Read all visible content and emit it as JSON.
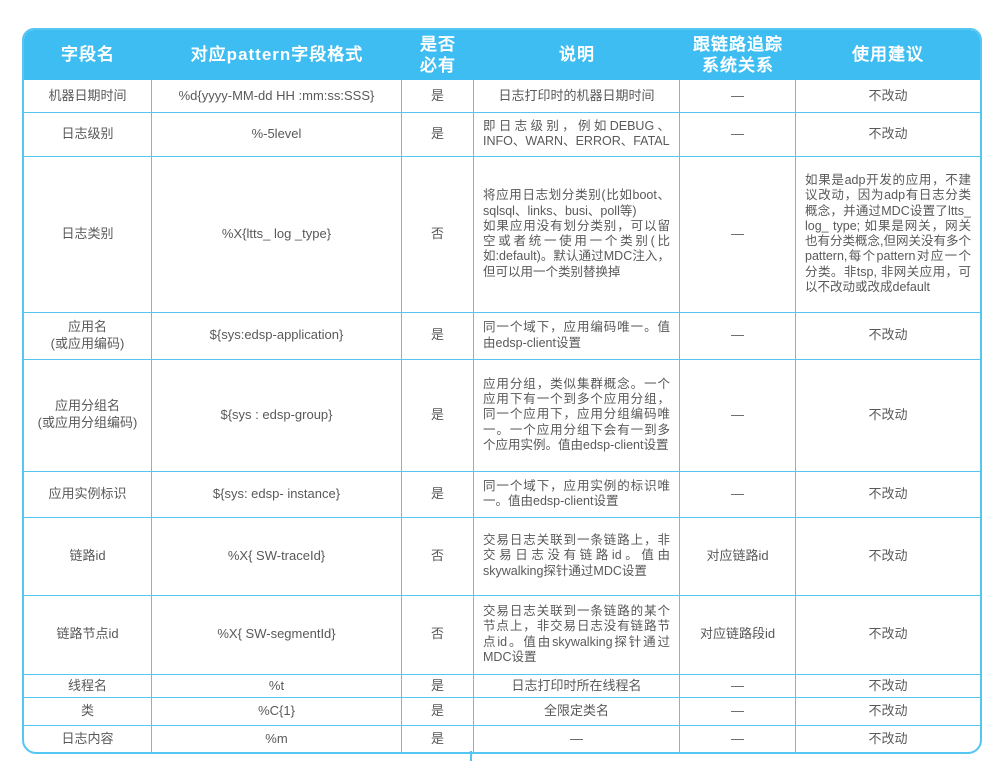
{
  "colors": {
    "header_bg": "#3DBDF2",
    "header_text": "#FFFFFF",
    "border": "#55C5F2",
    "body_text": "#595959",
    "page_bg": "#FFFFFF"
  },
  "table": {
    "columns": [
      {
        "label": "字段名"
      },
      {
        "label": "对应pattern字段格式"
      },
      {
        "label": "是否\n必有"
      },
      {
        "label": "说明"
      },
      {
        "label": "跟链路追踪\n系统关系"
      },
      {
        "label": "使用建议"
      }
    ],
    "rows": [
      {
        "cells": [
          "机器日期时间",
          "%d{yyyy-MM-dd HH :mm:ss:SSS}",
          "是",
          "日志打印时的机器日期时间",
          "—",
          "不改动"
        ]
      },
      {
        "cells": [
          "日志级别",
          "%-5level",
          "是",
          "即日志级别，例如DEBUG、INFO、WARN、ERROR、FATAL",
          "—",
          "不改动"
        ]
      },
      {
        "cells": [
          "日志类别",
          "%X{ltts_ log _type}",
          "否",
          "将应用日志划分类别(比如boot、sqlsql、links、busi、poll等)\n如果应用没有划分类别，可以留空或者统一使用一个类别(比如:default)。默认通过MDC注入，但可以用一个类别替换掉",
          "—",
          "如果是adp开发的应用，不建议改动，因为adp有日志分类概念，并通过MDC设置了ltts_ log_ type; 如果是网关，网关也有分类概念,但网关没有多个pattern,每个pattern对应一个分类。非tsp, 非网关应用，可以不改动或改成default"
        ]
      },
      {
        "cells": [
          "应用名\n(或应用编码)",
          "${sys:edsp-application}",
          "是",
          "同一个域下，应用编码唯一。值由edsp-client设置",
          "—",
          "不改动"
        ]
      },
      {
        "cells": [
          "应用分组名\n(或应用分组编码)",
          "${sys : edsp-group}",
          "是",
          "应用分组，类似集群概念。一个应用下有一个到多个应用分组，同一个应用下，应用分组编码唯一。一个应用分组下会有一到多个应用实例。值由edsp-client设置",
          "—",
          "不改动"
        ]
      },
      {
        "cells": [
          "应用实例标识",
          "${sys: edsp- instance}",
          "是",
          "同一个域下，应用实例的标识唯一。值由edsp-client设置",
          "—",
          "不改动"
        ]
      },
      {
        "cells": [
          "链路id",
          "%X{ SW-traceId}",
          "否",
          "交易日志关联到一条链路上，非交易日志没有链路id。值由skywalking探针通过MDC设置",
          "对应链路id",
          "不改动"
        ]
      },
      {
        "cells": [
          "链路节点id",
          "%X{ SW-segmentId}",
          "否",
          "交易日志关联到一条链路的某个节点上，非交易日志没有链路节点id。值由skywalking探针通过MDC设置",
          "对应链路段id",
          "不改动"
        ]
      },
      {
        "cells": [
          "线程名",
          "%t",
          "是",
          "日志打印时所在线程名",
          "—",
          "不改动"
        ]
      },
      {
        "cells": [
          "类",
          "%C{1}",
          "是",
          "全限定类名",
          "—",
          "不改动"
        ]
      },
      {
        "cells": [
          "日志内容",
          "%m",
          "是",
          "—",
          "—",
          "不改动"
        ]
      }
    ]
  }
}
